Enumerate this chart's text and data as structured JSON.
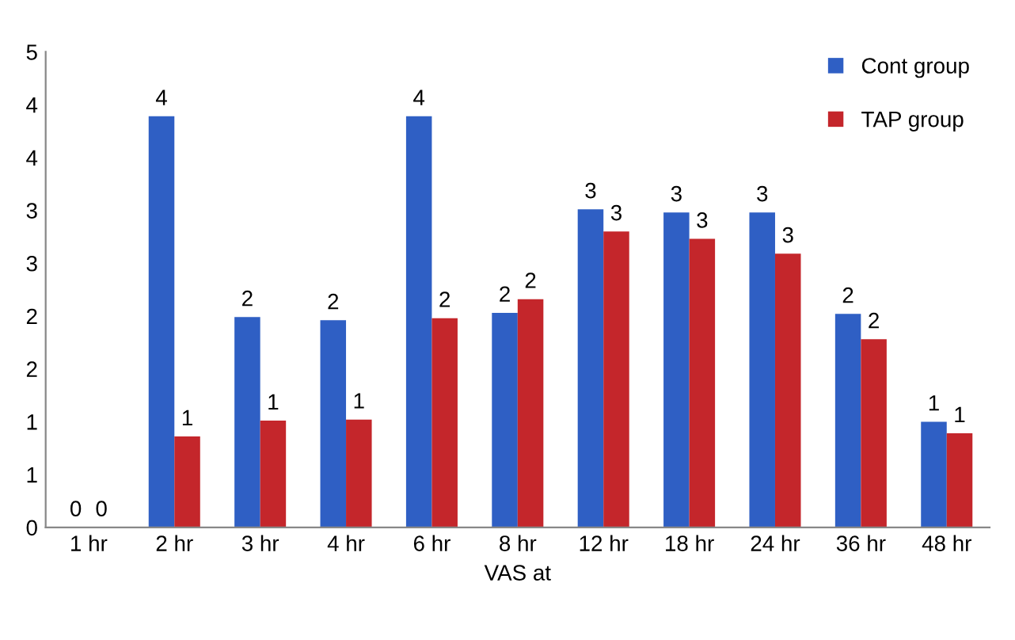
{
  "chart_data": {
    "type": "bar",
    "xlabel": "VAS at",
    "categories": [
      "1 hr",
      "2 hr",
      "3 hr",
      "4 hr",
      "6 hr",
      "8 hr",
      "12 hr",
      "18 hr",
      "24 hr",
      "36 hr",
      "48 hr"
    ],
    "series": [
      {
        "name": "Cont group",
        "color": "#2f5fc4",
        "values": [
          0,
          3.89,
          1.99,
          1.96,
          3.89,
          2.03,
          3.01,
          2.98,
          2.98,
          2.02,
          1.0
        ],
        "value_labels": [
          "0",
          "4",
          "2",
          "2",
          "4",
          "2",
          "3",
          "3",
          "3",
          "2",
          "1"
        ]
      },
      {
        "name": "TAP group",
        "color": "#c4262b",
        "values": [
          0,
          0.86,
          1.01,
          1.02,
          1.98,
          2.16,
          2.8,
          2.73,
          2.59,
          1.78,
          0.89
        ],
        "value_labels": [
          "0",
          "1",
          "1",
          "1",
          "2",
          "2",
          "3",
          "3",
          "3",
          "2",
          "1"
        ]
      }
    ],
    "ylim": [
      0,
      4.5
    ],
    "yticks": [
      0,
      {
        "value": 0.5,
        "label": "1"
      },
      {
        "value": 1,
        "label": "1"
      },
      {
        "value": 1.5,
        "label": "2"
      },
      {
        "value": 2,
        "label": "2"
      },
      {
        "value": 2.5,
        "label": "3"
      },
      {
        "value": 3,
        "label": "3"
      },
      {
        "value": 3.5,
        "label": "4"
      },
      {
        "value": 4,
        "label": "4"
      },
      {
        "value": 4.5,
        "label": "5"
      }
    ],
    "grid": false,
    "legend": "top right"
  }
}
